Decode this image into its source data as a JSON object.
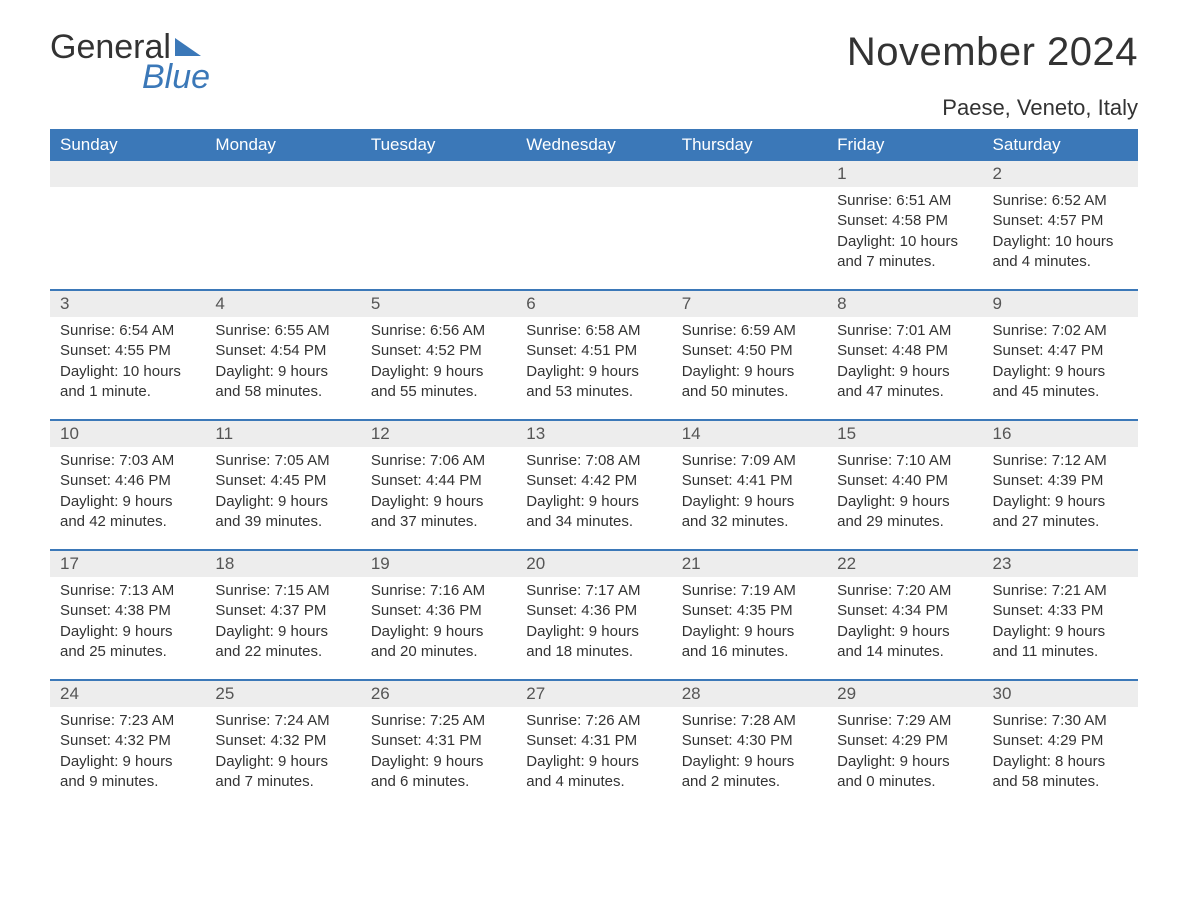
{
  "logo": {
    "word1": "General",
    "word2": "Blue"
  },
  "title": "November 2024",
  "subtitle": "Paese, Veneto, Italy",
  "colors": {
    "header_bg": "#3b78b8",
    "header_text": "#ffffff",
    "daynum_bg": "#ededed",
    "text": "#333333",
    "rule": "#3b78b8",
    "page_bg": "#ffffff"
  },
  "fontsize": {
    "title": 40,
    "subtitle": 22,
    "dayheader": 17,
    "daynum": 17,
    "details": 15
  },
  "day_headers": [
    "Sunday",
    "Monday",
    "Tuesday",
    "Wednesday",
    "Thursday",
    "Friday",
    "Saturday"
  ],
  "weeks": [
    [
      null,
      null,
      null,
      null,
      null,
      {
        "n": 1,
        "sunrise": "6:51 AM",
        "sunset": "4:58 PM",
        "daylight": "10 hours and 7 minutes."
      },
      {
        "n": 2,
        "sunrise": "6:52 AM",
        "sunset": "4:57 PM",
        "daylight": "10 hours and 4 minutes."
      }
    ],
    [
      {
        "n": 3,
        "sunrise": "6:54 AM",
        "sunset": "4:55 PM",
        "daylight": "10 hours and 1 minute."
      },
      {
        "n": 4,
        "sunrise": "6:55 AM",
        "sunset": "4:54 PM",
        "daylight": "9 hours and 58 minutes."
      },
      {
        "n": 5,
        "sunrise": "6:56 AM",
        "sunset": "4:52 PM",
        "daylight": "9 hours and 55 minutes."
      },
      {
        "n": 6,
        "sunrise": "6:58 AM",
        "sunset": "4:51 PM",
        "daylight": "9 hours and 53 minutes."
      },
      {
        "n": 7,
        "sunrise": "6:59 AM",
        "sunset": "4:50 PM",
        "daylight": "9 hours and 50 minutes."
      },
      {
        "n": 8,
        "sunrise": "7:01 AM",
        "sunset": "4:48 PM",
        "daylight": "9 hours and 47 minutes."
      },
      {
        "n": 9,
        "sunrise": "7:02 AM",
        "sunset": "4:47 PM",
        "daylight": "9 hours and 45 minutes."
      }
    ],
    [
      {
        "n": 10,
        "sunrise": "7:03 AM",
        "sunset": "4:46 PM",
        "daylight": "9 hours and 42 minutes."
      },
      {
        "n": 11,
        "sunrise": "7:05 AM",
        "sunset": "4:45 PM",
        "daylight": "9 hours and 39 minutes."
      },
      {
        "n": 12,
        "sunrise": "7:06 AM",
        "sunset": "4:44 PM",
        "daylight": "9 hours and 37 minutes."
      },
      {
        "n": 13,
        "sunrise": "7:08 AM",
        "sunset": "4:42 PM",
        "daylight": "9 hours and 34 minutes."
      },
      {
        "n": 14,
        "sunrise": "7:09 AM",
        "sunset": "4:41 PM",
        "daylight": "9 hours and 32 minutes."
      },
      {
        "n": 15,
        "sunrise": "7:10 AM",
        "sunset": "4:40 PM",
        "daylight": "9 hours and 29 minutes."
      },
      {
        "n": 16,
        "sunrise": "7:12 AM",
        "sunset": "4:39 PM",
        "daylight": "9 hours and 27 minutes."
      }
    ],
    [
      {
        "n": 17,
        "sunrise": "7:13 AM",
        "sunset": "4:38 PM",
        "daylight": "9 hours and 25 minutes."
      },
      {
        "n": 18,
        "sunrise": "7:15 AM",
        "sunset": "4:37 PM",
        "daylight": "9 hours and 22 minutes."
      },
      {
        "n": 19,
        "sunrise": "7:16 AM",
        "sunset": "4:36 PM",
        "daylight": "9 hours and 20 minutes."
      },
      {
        "n": 20,
        "sunrise": "7:17 AM",
        "sunset": "4:36 PM",
        "daylight": "9 hours and 18 minutes."
      },
      {
        "n": 21,
        "sunrise": "7:19 AM",
        "sunset": "4:35 PM",
        "daylight": "9 hours and 16 minutes."
      },
      {
        "n": 22,
        "sunrise": "7:20 AM",
        "sunset": "4:34 PM",
        "daylight": "9 hours and 14 minutes."
      },
      {
        "n": 23,
        "sunrise": "7:21 AM",
        "sunset": "4:33 PM",
        "daylight": "9 hours and 11 minutes."
      }
    ],
    [
      {
        "n": 24,
        "sunrise": "7:23 AM",
        "sunset": "4:32 PM",
        "daylight": "9 hours and 9 minutes."
      },
      {
        "n": 25,
        "sunrise": "7:24 AM",
        "sunset": "4:32 PM",
        "daylight": "9 hours and 7 minutes."
      },
      {
        "n": 26,
        "sunrise": "7:25 AM",
        "sunset": "4:31 PM",
        "daylight": "9 hours and 6 minutes."
      },
      {
        "n": 27,
        "sunrise": "7:26 AM",
        "sunset": "4:31 PM",
        "daylight": "9 hours and 4 minutes."
      },
      {
        "n": 28,
        "sunrise": "7:28 AM",
        "sunset": "4:30 PM",
        "daylight": "9 hours and 2 minutes."
      },
      {
        "n": 29,
        "sunrise": "7:29 AM",
        "sunset": "4:29 PM",
        "daylight": "9 hours and 0 minutes."
      },
      {
        "n": 30,
        "sunrise": "7:30 AM",
        "sunset": "4:29 PM",
        "daylight": "8 hours and 58 minutes."
      }
    ]
  ],
  "labels": {
    "sunrise": "Sunrise: ",
    "sunset": "Sunset: ",
    "daylight": "Daylight: "
  }
}
